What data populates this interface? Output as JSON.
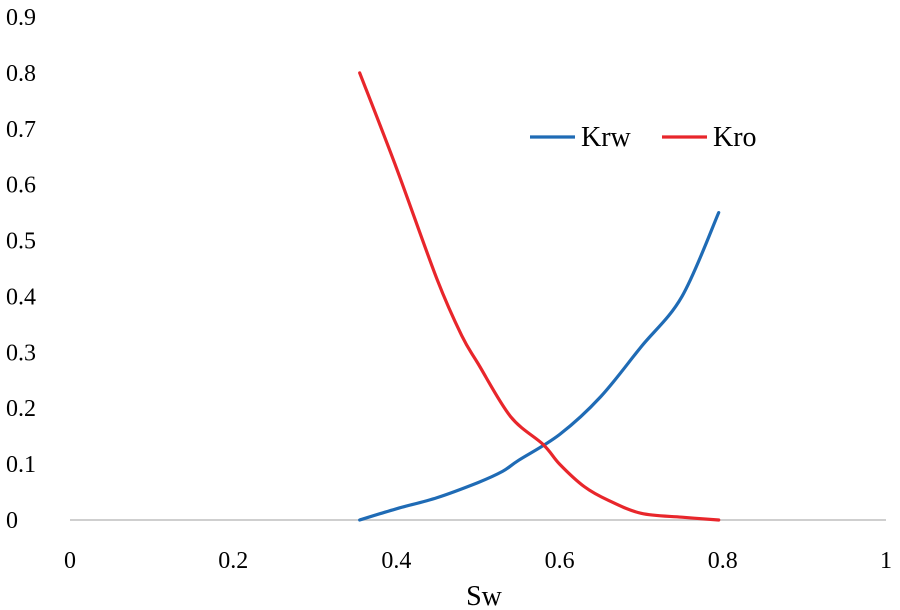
{
  "chart_data": {
    "type": "line",
    "title": "",
    "xlabel": "Sw",
    "ylabel": "",
    "xlim": [
      0,
      1
    ],
    "ylim": [
      0,
      0.9
    ],
    "x_ticks": [
      0,
      0.2,
      0.4,
      0.6,
      0.8,
      1
    ],
    "x_tick_labels": [
      "0",
      "0.2",
      "0.4",
      "0.6",
      "0.8",
      "1"
    ],
    "y_ticks": [
      0,
      0.1,
      0.2,
      0.3,
      0.4,
      0.5,
      0.6,
      0.7,
      0.8,
      0.9
    ],
    "y_tick_labels": [
      "0",
      "0.1",
      "0.2",
      "0.3",
      "0.4",
      "0.5",
      "0.6",
      "0.7",
      "0.8",
      "0.9"
    ],
    "grid": false,
    "legend_position": "top-right",
    "series": [
      {
        "name": "Krw",
        "color": "#1F6BB5",
        "x": [
          0.355,
          0.4,
          0.45,
          0.5,
          0.53,
          0.55,
          0.6,
          0.65,
          0.7,
          0.75,
          0.795
        ],
        "y": [
          0.0,
          0.02,
          0.04,
          0.067,
          0.087,
          0.107,
          0.153,
          0.22,
          0.31,
          0.4,
          0.55
        ]
      },
      {
        "name": "Kro",
        "color": "#E8262B",
        "x": [
          0.355,
          0.4,
          0.45,
          0.48,
          0.5,
          0.54,
          0.58,
          0.6,
          0.63,
          0.66,
          0.7,
          0.75,
          0.795
        ],
        "y": [
          0.8,
          0.63,
          0.43,
          0.33,
          0.28,
          0.185,
          0.135,
          0.1,
          0.06,
          0.035,
          0.012,
          0.005,
          0.0
        ]
      }
    ]
  }
}
